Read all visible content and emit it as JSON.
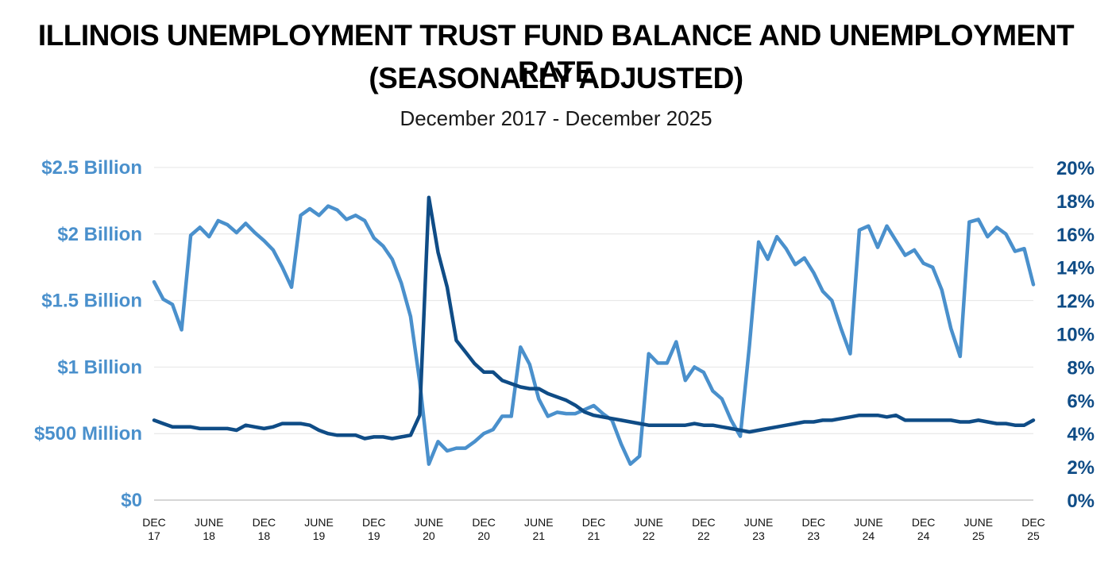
{
  "title_line1": "ILLINOIS UNEMPLOYMENT TRUST FUND BALANCE AND UNEMPLOYMENT RATE",
  "title_line2": "(SEASONALLY ADJUSTED)",
  "subtitle": "December 2017 - December 2025",
  "colors": {
    "balance": "#4a90cc",
    "rate": "#0f4c86",
    "left_axis_text": "#4a90cc",
    "right_axis_text": "#0f4c86",
    "grid": "#e4e4e4"
  },
  "chart_data": {
    "type": "line",
    "x_start": "2017-12",
    "x_end": "2025-12",
    "x_tick_labels": [
      [
        "DEC",
        "17"
      ],
      [
        "JUNE",
        "18"
      ],
      [
        "DEC",
        "18"
      ],
      [
        "JUNE",
        "19"
      ],
      [
        "DEC",
        "19"
      ],
      [
        "JUNE",
        "20"
      ],
      [
        "DEC",
        "20"
      ],
      [
        "JUNE",
        "21"
      ],
      [
        "DEC",
        "21"
      ],
      [
        "JUNE",
        "22"
      ],
      [
        "DEC",
        "22"
      ],
      [
        "JUNE",
        "23"
      ],
      [
        "DEC",
        "23"
      ],
      [
        "JUNE",
        "24"
      ],
      [
        "DEC",
        "24"
      ],
      [
        "JUNE",
        "25"
      ],
      [
        "DEC",
        "25"
      ]
    ],
    "y_left": {
      "ylim": [
        0,
        2.5
      ],
      "tick_values": [
        0,
        0.5,
        1,
        1.5,
        2,
        2.5
      ],
      "tick_labels": [
        "$0",
        "$500 Million",
        "$1 Billion",
        "$1.5 Billion",
        "$2 Billion",
        "$2.5 Billion"
      ]
    },
    "y_right": {
      "ylim": [
        0,
        20
      ],
      "tick_values": [
        0,
        2,
        4,
        6,
        8,
        10,
        12,
        14,
        16,
        18,
        20
      ],
      "tick_labels": [
        "0%",
        "2%",
        "4%",
        "6%",
        "8%",
        "10%",
        "12%",
        "14%",
        "16%",
        "18%",
        "20%"
      ]
    },
    "grid": true,
    "series": [
      {
        "axis": "left",
        "points": [
          [
            "2017-12",
            1.64
          ],
          [
            "2018-01",
            1.51
          ],
          [
            "2018-02",
            1.47
          ],
          [
            "2018-03",
            1.28
          ],
          [
            "2018-04",
            1.99
          ],
          [
            "2018-05",
            2.05
          ],
          [
            "2018-06",
            1.98
          ],
          [
            "2018-07",
            2.1
          ],
          [
            "2018-08",
            2.07
          ],
          [
            "2018-09",
            2.01
          ],
          [
            "2018-10",
            2.08
          ],
          [
            "2018-11",
            2.01
          ],
          [
            "2018-12",
            1.95
          ],
          [
            "2018-13",
            1.88
          ],
          [
            "2018-14",
            1.75
          ],
          [
            "2018-15",
            1.6
          ],
          [
            "2019-04",
            2.14
          ],
          [
            "2019-05",
            2.19
          ],
          [
            "2019-06",
            2.14
          ],
          [
            "2019-07",
            2.21
          ],
          [
            "2019-08",
            2.18
          ],
          [
            "2019-09",
            2.11
          ],
          [
            "2019-10",
            2.14
          ],
          [
            "2019-11",
            2.1
          ],
          [
            "2019-12",
            1.97
          ],
          [
            "2020-01",
            1.91
          ],
          [
            "2020-02",
            1.81
          ],
          [
            "2020-03",
            1.63
          ],
          [
            "2020-04",
            1.38
          ],
          [
            "2020-05",
            0.89
          ],
          [
            "2020-06",
            0.27
          ],
          [
            "2020-07",
            0.44
          ],
          [
            "2020-08",
            0.37
          ],
          [
            "2020-09",
            0.39
          ],
          [
            "2020-10",
            0.39
          ],
          [
            "2020-11",
            0.44
          ],
          [
            "2020-12",
            0.5
          ],
          [
            "2021-01",
            0.53
          ],
          [
            "2021-02",
            0.63
          ],
          [
            "2021-03",
            0.63
          ],
          [
            "2021-04",
            1.15
          ],
          [
            "2021-05",
            1.02
          ],
          [
            "2021-06",
            0.76
          ],
          [
            "2021-07",
            0.63
          ],
          [
            "2021-08",
            0.66
          ],
          [
            "2021-09",
            0.65
          ],
          [
            "2021-10",
            0.65
          ],
          [
            "2021-11",
            0.68
          ],
          [
            "2021-12",
            0.71
          ],
          [
            "2022-01",
            0.65
          ],
          [
            "2022-02",
            0.6
          ],
          [
            "2022-03",
            0.42
          ],
          [
            "2022-04",
            0.27
          ],
          [
            "2022-05",
            0.33
          ],
          [
            "2022-06",
            1.1
          ],
          [
            "2022-07",
            1.03
          ],
          [
            "2022-08",
            1.03
          ],
          [
            "2022-09",
            1.19
          ],
          [
            "2022-10",
            0.9
          ],
          [
            "2022-11",
            1.0
          ],
          [
            "2022-12",
            0.96
          ],
          [
            "2023-01",
            0.82
          ],
          [
            "2023-02",
            0.76
          ],
          [
            "2023-03",
            0.6
          ],
          [
            "2023-04",
            0.48
          ],
          [
            "2023-05",
            1.16
          ],
          [
            "2023-06",
            1.94
          ],
          [
            "2023-07",
            1.81
          ],
          [
            "2023-08",
            1.98
          ],
          [
            "2023-09",
            1.89
          ],
          [
            "2023-10",
            1.77
          ],
          [
            "2023-11",
            1.82
          ],
          [
            "2023-12",
            1.71
          ],
          [
            "2024-01",
            1.57
          ],
          [
            "2024-02",
            1.5
          ],
          [
            "2024-03",
            1.29
          ],
          [
            "2024-04",
            1.1
          ],
          [
            "2024-05",
            2.03
          ],
          [
            "2024-06",
            2.06
          ],
          [
            "2024-07",
            1.9
          ],
          [
            "2024-08",
            2.06
          ],
          [
            "2024-09",
            1.95
          ],
          [
            "2024-10",
            1.84
          ],
          [
            "2024-11",
            1.88
          ],
          [
            "2024-12",
            1.78
          ],
          [
            "2025-01",
            1.75
          ],
          [
            "2025-02",
            1.58
          ],
          [
            "2025-03",
            1.29
          ],
          [
            "2025-04",
            1.08
          ],
          [
            "2025-05",
            2.09
          ],
          [
            "2025-06",
            2.11
          ],
          [
            "2025-07",
            1.98
          ],
          [
            "2025-08",
            2.05
          ],
          [
            "2025-09",
            2.0
          ],
          [
            "2025-10",
            1.87
          ],
          [
            "2025-11",
            1.89
          ],
          [
            "2025-12",
            1.62
          ]
        ]
      },
      {
        "axis": "right",
        "points": [
          [
            "2017-12",
            4.8
          ],
          [
            "2018-01",
            4.6
          ],
          [
            "2018-02",
            4.4
          ],
          [
            "2018-03",
            4.4
          ],
          [
            "2018-04",
            4.4
          ],
          [
            "2018-05",
            4.3
          ],
          [
            "2018-06",
            4.3
          ],
          [
            "2018-07",
            4.3
          ],
          [
            "2018-08",
            4.3
          ],
          [
            "2018-09",
            4.2
          ],
          [
            "2018-10",
            4.5
          ],
          [
            "2018-11",
            4.4
          ],
          [
            "2018-12",
            4.3
          ],
          [
            "2019-01",
            4.4
          ],
          [
            "2019-02",
            4.6
          ],
          [
            "2019-03",
            4.6
          ],
          [
            "2019-04",
            4.6
          ],
          [
            "2019-05",
            4.5
          ],
          [
            "2019-06",
            4.2
          ],
          [
            "2019-07",
            4.0
          ],
          [
            "2019-08",
            3.9
          ],
          [
            "2019-09",
            3.9
          ],
          [
            "2019-10",
            3.9
          ],
          [
            "2019-11",
            3.7
          ],
          [
            "2019-12",
            3.8
          ],
          [
            "2020-01",
            3.8
          ],
          [
            "2020-02",
            3.7
          ],
          [
            "2020-03",
            3.8
          ],
          [
            "2020-04",
            3.9
          ],
          [
            "2020-05",
            5.1
          ],
          [
            "2020-06",
            18.2
          ],
          [
            "2020-07",
            14.9
          ],
          [
            "2020-08",
            12.8
          ],
          [
            "2020-09",
            9.6
          ],
          [
            "2020-10",
            8.9
          ],
          [
            "2020-11",
            8.2
          ],
          [
            "2020-12",
            7.7
          ],
          [
            "2021-01",
            7.7
          ],
          [
            "2021-02",
            7.2
          ],
          [
            "2021-03",
            7.0
          ],
          [
            "2021-04",
            6.8
          ],
          [
            "2021-05",
            6.7
          ],
          [
            "2021-06",
            6.7
          ],
          [
            "2021-07",
            6.4
          ],
          [
            "2021-08",
            6.2
          ],
          [
            "2021-09",
            6.0
          ],
          [
            "2021-10",
            5.7
          ],
          [
            "2021-11",
            5.3
          ],
          [
            "2021-12",
            5.1
          ],
          [
            "2022-01",
            5.0
          ],
          [
            "2022-02",
            4.9
          ],
          [
            "2022-03",
            4.8
          ],
          [
            "2022-04",
            4.7
          ],
          [
            "2022-05",
            4.6
          ],
          [
            "2022-06",
            4.5
          ],
          [
            "2022-07",
            4.5
          ],
          [
            "2022-08",
            4.5
          ],
          [
            "2022-09",
            4.5
          ],
          [
            "2022-10",
            4.5
          ],
          [
            "2022-11",
            4.6
          ],
          [
            "2022-12",
            4.5
          ],
          [
            "2023-01",
            4.5
          ],
          [
            "2023-02",
            4.4
          ],
          [
            "2023-03",
            4.3
          ],
          [
            "2023-04",
            4.2
          ],
          [
            "2023-05",
            4.1
          ],
          [
            "2023-06",
            4.2
          ],
          [
            "2023-07",
            4.3
          ],
          [
            "2023-08",
            4.4
          ],
          [
            "2023-09",
            4.5
          ],
          [
            "2023-10",
            4.6
          ],
          [
            "2023-11",
            4.7
          ],
          [
            "2023-12",
            4.7
          ],
          [
            "2024-01",
            4.8
          ],
          [
            "2024-02",
            4.8
          ],
          [
            "2024-03",
            4.9
          ],
          [
            "2024-04",
            5.0
          ],
          [
            "2024-05",
            5.1
          ],
          [
            "2024-06",
            5.1
          ],
          [
            "2024-07",
            5.1
          ],
          [
            "2024-08",
            5.0
          ],
          [
            "2024-09",
            5.1
          ],
          [
            "2024-10",
            4.8
          ],
          [
            "2024-11",
            4.8
          ],
          [
            "2024-12",
            4.8
          ],
          [
            "2025-01",
            4.8
          ],
          [
            "2025-02",
            4.8
          ],
          [
            "2025-03",
            4.8
          ],
          [
            "2025-04",
            4.7
          ],
          [
            "2025-05",
            4.7
          ],
          [
            "2025-06",
            4.8
          ],
          [
            "2025-07",
            4.7
          ],
          [
            "2025-08",
            4.6
          ],
          [
            "2025-09",
            4.6
          ],
          [
            "2025-10",
            4.5
          ],
          [
            "2025-11",
            4.5
          ],
          [
            "2025-12",
            4.8
          ]
        ]
      }
    ]
  }
}
